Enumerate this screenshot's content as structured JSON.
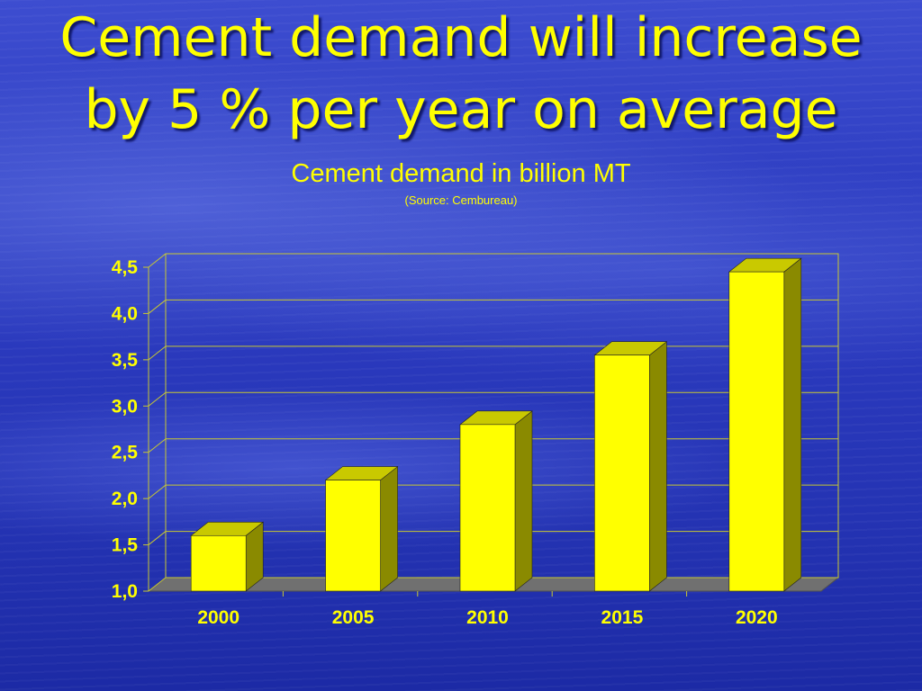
{
  "slide": {
    "title_line1": "Cement demand will increase",
    "title_line2": "by 5 % per year on average"
  },
  "chart_data": {
    "type": "bar",
    "title": "Cement demand in billion MT",
    "subtitle": "(Source: Cembureau)",
    "categories": [
      "2000",
      "2005",
      "2010",
      "2015",
      "2020"
    ],
    "values": [
      1.6,
      2.2,
      2.8,
      3.55,
      4.45
    ],
    "ylim": [
      1.0,
      4.5
    ],
    "yticks": [
      "1,0",
      "1,5",
      "2,0",
      "2,5",
      "3,0",
      "3,5",
      "4,0",
      "4,5"
    ],
    "grid": true,
    "legend": "none",
    "colors": {
      "bar_front": "#ffff00",
      "bar_side": "#8a8a00",
      "bar_top": "#c9c900",
      "grid": "#c8c832",
      "floor": "#707070",
      "text": "#ffff00"
    }
  }
}
